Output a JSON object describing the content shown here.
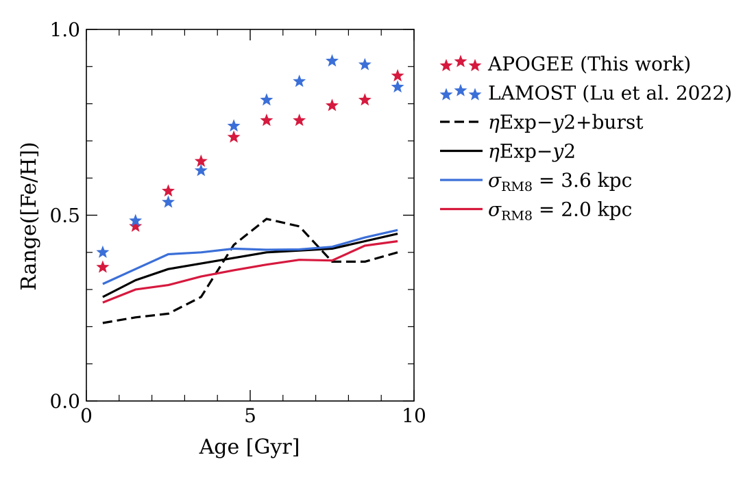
{
  "chart_data": {
    "type": "scatter",
    "xlabel": "Age [Gyr]",
    "ylabel": "Range([Fe/H])",
    "xlim": [
      0,
      10
    ],
    "ylim": [
      0,
      1.0
    ],
    "x_ticks": [
      0,
      5,
      10
    ],
    "x_tick_labels": [
      "0",
      "5",
      "10"
    ],
    "y_ticks": [
      0.0,
      0.5,
      1.0
    ],
    "y_tick_labels": [
      "0.0",
      "0.5",
      "1.0"
    ],
    "x_minor_ticks": [
      1,
      2,
      3,
      4,
      6,
      7,
      8,
      9
    ],
    "y_minor_ticks": [
      0.1,
      0.2,
      0.3,
      0.4,
      0.6,
      0.7,
      0.8,
      0.9
    ],
    "grid": false,
    "legend_position": "outside-right",
    "series": [
      {
        "name": "APOGEE (This work)",
        "kind": "scatter",
        "marker": "star",
        "color": "#d6193e",
        "x": [
          0.5,
          1.5,
          2.5,
          3.5,
          4.5,
          5.5,
          6.5,
          7.5,
          8.5,
          9.5
        ],
        "y": [
          0.36,
          0.47,
          0.565,
          0.645,
          0.71,
          0.755,
          0.755,
          0.795,
          0.81,
          0.875
        ]
      },
      {
        "name": "LAMOST (Lu et al. 2022)",
        "kind": "scatter",
        "marker": "star",
        "color": "#3b6fd8",
        "x": [
          0.5,
          1.5,
          2.5,
          3.5,
          4.5,
          5.5,
          6.5,
          7.5,
          8.5,
          9.5
        ],
        "y": [
          0.4,
          0.485,
          0.535,
          0.62,
          0.74,
          0.81,
          0.86,
          0.915,
          0.905,
          0.845
        ]
      },
      {
        "name": "ηExp−y2+burst",
        "kind": "line",
        "dash": "dashed",
        "color": "#000000",
        "x": [
          0.5,
          1.5,
          2.5,
          3.5,
          4.5,
          5.5,
          6.5,
          7.5,
          8.5,
          9.5
        ],
        "y": [
          0.21,
          0.225,
          0.235,
          0.28,
          0.42,
          0.49,
          0.47,
          0.375,
          0.375,
          0.4
        ]
      },
      {
        "name": "ηExp−y2",
        "kind": "line",
        "dash": "solid",
        "color": "#000000",
        "x": [
          0.5,
          1.5,
          2.5,
          3.5,
          4.5,
          5.5,
          6.5,
          7.5,
          8.5,
          9.5
        ],
        "y": [
          0.28,
          0.325,
          0.355,
          0.37,
          0.385,
          0.4,
          0.405,
          0.41,
          0.43,
          0.45
        ]
      },
      {
        "name": "σRM8 = 3.6 kpc",
        "kind": "line",
        "dash": "solid",
        "color": "#3b6fd8",
        "x": [
          0.5,
          1.5,
          2.5,
          3.5,
          4.5,
          5.5,
          6.5,
          7.5,
          8.5,
          9.5
        ],
        "y": [
          0.315,
          0.355,
          0.395,
          0.4,
          0.41,
          0.407,
          0.408,
          0.415,
          0.44,
          0.46
        ]
      },
      {
        "name": "σRM8 = 2.0 kpc",
        "kind": "line",
        "dash": "solid",
        "color": "#d6193e",
        "x": [
          0.5,
          1.5,
          2.5,
          3.5,
          4.5,
          5.5,
          6.5,
          7.5,
          8.5,
          9.5
        ],
        "y": [
          0.265,
          0.3,
          0.312,
          0.335,
          0.352,
          0.367,
          0.38,
          0.378,
          0.418,
          0.43
        ]
      }
    ],
    "legend": [
      {
        "marker": "star",
        "color": "#d6193e",
        "label": "APOGEE (This work)"
      },
      {
        "marker": "star",
        "color": "#3b6fd8",
        "label": "LAMOST (Lu et al. 2022)"
      },
      {
        "marker": "line-dashed",
        "color": "#000000",
        "eta": "η",
        "body": "Exp−",
        "y": "y",
        "tail": "2+burst"
      },
      {
        "marker": "line",
        "color": "#000000",
        "eta": "η",
        "body": "Exp−",
        "y": "y",
        "tail": "2"
      },
      {
        "marker": "line",
        "color": "#3b6fd8",
        "sigma": "σ",
        "sub": "RM8",
        "tail": " = 3.6 kpc"
      },
      {
        "marker": "line",
        "color": "#d6193e",
        "sigma": "σ",
        "sub": "RM8",
        "tail": " = 2.0 kpc"
      }
    ]
  }
}
